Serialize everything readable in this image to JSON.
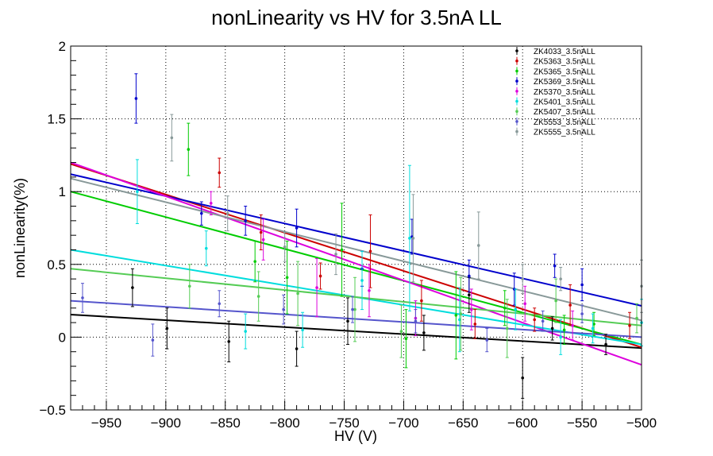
{
  "chart_data": {
    "type": "scatter",
    "title": "nonLinearity vs HV for 3.5nA LL",
    "xlabel": "HV (V)",
    "ylabel": "nonLinearity(%)",
    "xlim": [
      -980,
      -500
    ],
    "ylim": [
      -0.5,
      2
    ],
    "x_ticks": [
      -950,
      -900,
      -850,
      -800,
      -750,
      -700,
      -650,
      -600,
      -550,
      -500
    ],
    "x_tick_labels": [
      "−950",
      "−900",
      "−850",
      "−800",
      "−750",
      "−700",
      "−650",
      "−600",
      "−550",
      "−500"
    ],
    "y_ticks": [
      -0.5,
      0,
      0.5,
      1,
      1.5,
      2
    ],
    "y_tick_labels": [
      "−0.5",
      "0",
      "0.5",
      "1",
      "1.5",
      "2"
    ],
    "grid": true,
    "legend_position": "top-right",
    "series": [
      {
        "name": "ZK4033_3.5nALL",
        "color": "#000000",
        "fit": [
          [
            -980,
            0.155
          ],
          [
            -500,
            -0.075
          ]
        ],
        "points": [
          [
            -928,
            0.34,
            0.13
          ],
          [
            -899,
            0.06,
            0.14
          ],
          [
            -847,
            -0.03,
            0.14
          ],
          [
            -790,
            -0.08,
            0.12
          ],
          [
            -747,
            0.11,
            0.16
          ],
          [
            -683,
            0.03,
            0.12
          ],
          [
            -645,
            0.29,
            0.12
          ],
          [
            -600,
            -0.28,
            0.14
          ],
          [
            -575,
            0.06,
            0.08
          ],
          [
            -530,
            -0.05,
            0.07
          ]
        ]
      },
      {
        "name": "ZK5363_3.5nALL",
        "color": "#cc0000",
        "fit": [
          [
            -980,
            1.19
          ],
          [
            -500,
            -0.07
          ]
        ],
        "points": [
          [
            -855,
            1.13,
            0.1
          ],
          [
            -820,
            0.72,
            0.12
          ],
          [
            -770,
            0.42,
            0.09
          ],
          [
            -728,
            0.59,
            0.25
          ],
          [
            -685,
            0.25,
            0.14
          ],
          [
            -640,
            0.09,
            0.1
          ],
          [
            -590,
            0.12,
            0.08
          ],
          [
            -560,
            0.22,
            0.14
          ],
          [
            -510,
            0.08,
            0.09
          ]
        ]
      },
      {
        "name": "ZK5365_3.5nALL",
        "color": "#00cc00",
        "fit": [
          [
            -980,
            1.0
          ],
          [
            -500,
            -0.05
          ]
        ],
        "points": [
          [
            -881,
            1.29,
            0.18
          ],
          [
            -825,
            0.52,
            0.14
          ],
          [
            -798,
            0.41,
            0.25
          ],
          [
            -752,
            0.6,
            0.32
          ],
          [
            -698,
            -0.01,
            0.2
          ],
          [
            -656,
            0.15,
            0.3
          ],
          [
            -615,
            0.2,
            0.12
          ],
          [
            -565,
            0.05,
            0.1
          ],
          [
            -540,
            0.09,
            0.08
          ]
        ]
      },
      {
        "name": "ZK5369_3.5nALL",
        "color": "#0000cc",
        "fit": [
          [
            -980,
            1.12
          ],
          [
            -500,
            0.215
          ]
        ],
        "points": [
          [
            -925,
            1.64,
            0.17
          ],
          [
            -870,
            0.85,
            0.08
          ],
          [
            -833,
            0.8,
            0.1
          ],
          [
            -790,
            0.75,
            0.13
          ],
          [
            -735,
            0.47,
            0.12
          ],
          [
            -693,
            0.69,
            0.12
          ],
          [
            -645,
            0.42,
            0.11
          ],
          [
            -607,
            0.33,
            0.11
          ],
          [
            -573,
            0.49,
            0.08
          ],
          [
            -550,
            0.36,
            0.11
          ]
        ]
      },
      {
        "name": "ZK5370_3.5nALL",
        "color": "#dd00dd",
        "fit": [
          [
            -980,
            1.2
          ],
          [
            -500,
            -0.19
          ]
        ],
        "points": [
          [
            -862,
            0.92,
            0.08
          ],
          [
            -818,
            0.67,
            0.14
          ],
          [
            -773,
            0.34,
            0.2
          ],
          [
            -729,
            0.32,
            0.18
          ],
          [
            -690,
            0.13,
            0.12
          ],
          [
            -643,
            0.19,
            0.14
          ],
          [
            -598,
            0.23,
            0.12
          ],
          [
            -558,
            0.08,
            0.1
          ]
        ]
      },
      {
        "name": "ZK5401_3.5nALL",
        "color": "#00dddd",
        "fit": [
          [
            -980,
            0.6
          ],
          [
            -500,
            -0.05
          ]
        ],
        "points": [
          [
            -924,
            1.0,
            0.22
          ],
          [
            -866,
            0.61,
            0.12
          ],
          [
            -833,
            0.04,
            0.12
          ],
          [
            -785,
            0.05,
            0.12
          ],
          [
            -735,
            0.39,
            0.2
          ],
          [
            -695,
            0.68,
            0.5
          ],
          [
            -653,
            0.12,
            0.22
          ],
          [
            -606,
            0.19,
            0.14
          ],
          [
            -568,
            0.0,
            0.12
          ],
          [
            -541,
            0.06,
            0.1
          ],
          [
            -500,
            0.1,
            0.16
          ]
        ]
      },
      {
        "name": "ZK5407_3.5nALL",
        "color": "#55cc55",
        "fit": [
          [
            -980,
            0.47
          ],
          [
            -500,
            0.08
          ]
        ],
        "points": [
          [
            -880,
            0.35,
            0.15
          ],
          [
            -822,
            0.28,
            0.17
          ],
          [
            -789,
            0.3,
            0.22
          ],
          [
            -741,
            0.19,
            0.22
          ],
          [
            -702,
            0.04,
            0.18
          ],
          [
            -652,
            0.16,
            0.25
          ],
          [
            -613,
            0.06,
            0.2
          ],
          [
            -572,
            0.25,
            0.15
          ],
          [
            -504,
            0.13,
            0.1
          ]
        ]
      },
      {
        "name": "ZK5553_3.5nALL",
        "color": "#5555cc",
        "fit": [
          [
            -980,
            0.25
          ],
          [
            -500,
            0.0
          ]
        ],
        "points": [
          [
            -970,
            0.27,
            0.1
          ],
          [
            -911,
            -0.02,
            0.11
          ],
          [
            -855,
            0.23,
            0.09
          ],
          [
            -801,
            0.19,
            0.1
          ],
          [
            -743,
            0.19,
            0.09
          ],
          [
            -690,
            0.11,
            0.08
          ],
          [
            -630,
            -0.02,
            0.08
          ],
          [
            -583,
            0.11,
            0.07
          ],
          [
            -550,
            0.16,
            0.06
          ]
        ]
      },
      {
        "name": "ZK5555_3.5nALL",
        "color": "#889999",
        "fit": [
          [
            -980,
            1.09
          ],
          [
            -500,
            0.115
          ]
        ],
        "points": [
          [
            -895,
            1.37,
            0.16
          ],
          [
            -848,
            0.85,
            0.12
          ],
          [
            -800,
            0.62,
            0.1
          ],
          [
            -757,
            0.57,
            0.14
          ],
          [
            -692,
            0.68,
            0.3
          ],
          [
            -637,
            0.63,
            0.23
          ],
          [
            -600,
            0.4,
            0.1
          ],
          [
            -568,
            0.4,
            0.08
          ],
          [
            -500,
            0.35,
            0.18
          ]
        ]
      }
    ]
  }
}
